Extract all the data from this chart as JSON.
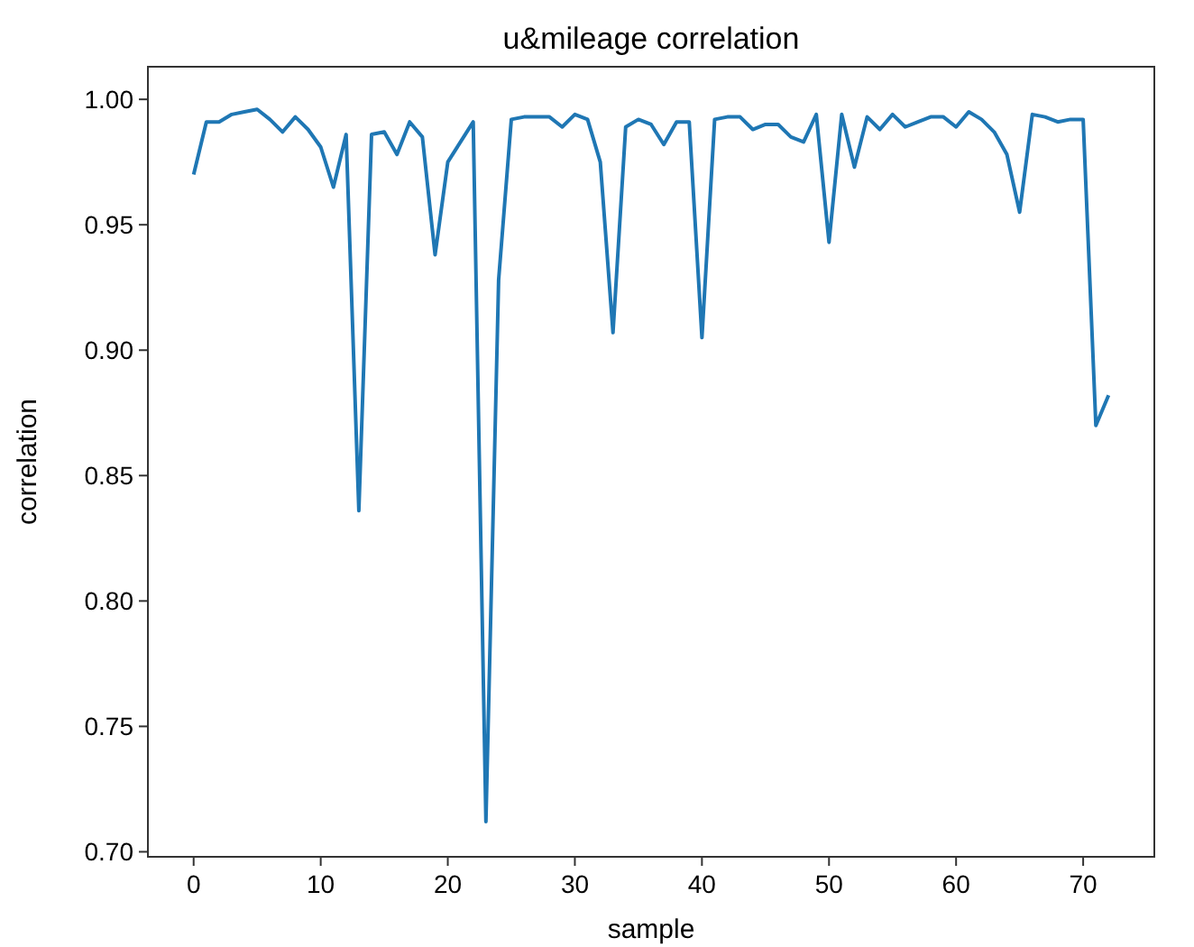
{
  "chart_data": {
    "type": "line",
    "title": "u&mileage correlation",
    "xlabel": "sample",
    "ylabel": "correlation",
    "x": [
      0,
      1,
      2,
      3,
      4,
      5,
      6,
      7,
      8,
      9,
      10,
      11,
      12,
      13,
      14,
      15,
      16,
      17,
      18,
      19,
      20,
      21,
      22,
      23,
      24,
      25,
      26,
      27,
      28,
      29,
      30,
      31,
      32,
      33,
      34,
      35,
      36,
      37,
      38,
      39,
      40,
      41,
      42,
      43,
      44,
      45,
      46,
      47,
      48,
      49,
      50,
      51,
      52,
      53,
      54,
      55,
      56,
      57,
      58,
      59,
      60,
      61,
      62,
      63,
      64,
      65,
      66,
      67,
      68,
      69,
      70,
      71,
      72
    ],
    "series": [
      {
        "color": "#1f77b4",
        "values": [
          0.97,
          0.991,
          0.991,
          0.994,
          0.995,
          0.996,
          0.992,
          0.987,
          0.993,
          0.988,
          0.981,
          0.965,
          0.986,
          0.836,
          0.986,
          0.987,
          0.978,
          0.991,
          0.985,
          0.938,
          0.975,
          0.983,
          0.991,
          0.712,
          0.928,
          0.992,
          0.993,
          0.993,
          0.993,
          0.989,
          0.994,
          0.992,
          0.975,
          0.907,
          0.989,
          0.992,
          0.99,
          0.982,
          0.991,
          0.991,
          0.905,
          0.992,
          0.993,
          0.993,
          0.988,
          0.99,
          0.99,
          0.985,
          0.983,
          0.994,
          0.943,
          0.994,
          0.973,
          0.993,
          0.988,
          0.994,
          0.989,
          0.991,
          0.993,
          0.993,
          0.989,
          0.995,
          0.992,
          0.987,
          0.978,
          0.955,
          0.994,
          0.993,
          0.991,
          0.992,
          0.992,
          0.87,
          0.882
        ]
      }
    ],
    "xlim": [
      -3.6,
      75.6
    ],
    "xticks": [
      0,
      10,
      20,
      30,
      40,
      50,
      60,
      70
    ],
    "ylim": [
      0.698,
      1.013
    ],
    "yticks": [
      {
        "value": 0.7,
        "label": "0.70"
      },
      {
        "value": 0.75,
        "label": "0.75"
      },
      {
        "value": 0.8,
        "label": "0.80"
      },
      {
        "value": 0.85,
        "label": "0.85"
      },
      {
        "value": 0.9,
        "label": "0.90"
      },
      {
        "value": 0.95,
        "label": "0.95"
      },
      {
        "value": 1.0,
        "label": "1.00"
      }
    ],
    "grid": false,
    "marker": "none",
    "line_style": "solid"
  }
}
